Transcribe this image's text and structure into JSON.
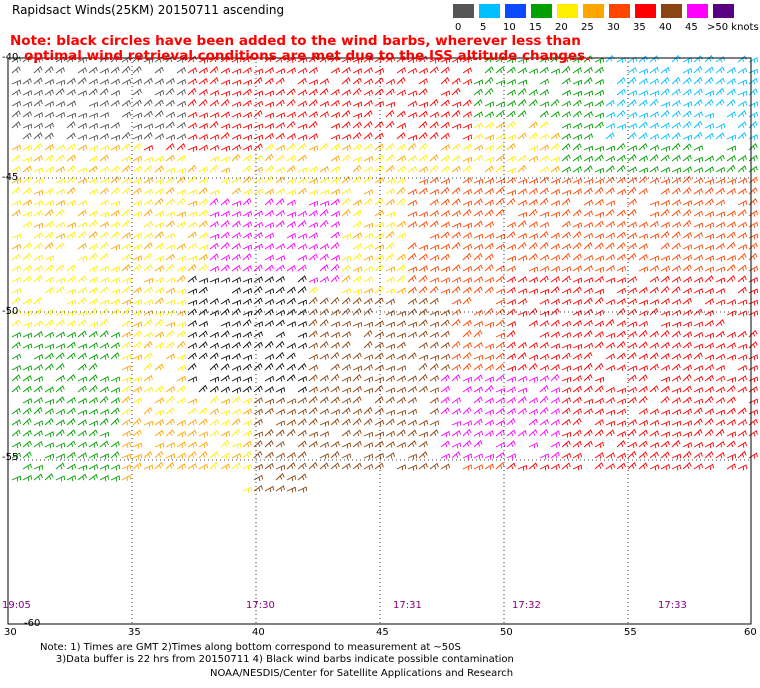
{
  "title": "Rapidsact Winds(25KM) 20150711 ascending",
  "note": "Note: black circles have been added to the wind barbs, wherever less than\n   optimal wind retrieval conditions are met due to the ISS altitude changes.",
  "scale": {
    "labels": [
      "0",
      "5",
      "10",
      "15",
      "20",
      "25",
      "30",
      "35",
      "40",
      "45",
      ">50 knots"
    ],
    "colors": [
      "#555555",
      "#00bfff",
      "#0a4aff",
      "#00a000",
      "#ffee00",
      "#ffa500",
      "#ff4500",
      "#ff0000",
      "#8b4513",
      "#ff00ff",
      "#5a0082"
    ]
  },
  "map": {
    "lat_labels": [
      "-40",
      "-45",
      "-50",
      "-55",
      "-60"
    ],
    "lon_labels": [
      "30",
      "35",
      "40",
      "45",
      "50",
      "55",
      "60"
    ],
    "times": [
      "19:05",
      "17:30",
      "17:31",
      "17:32",
      "17:33"
    ]
  },
  "footer": {
    "line1": "Note: 1) Times are GMT 2)Times along bottom correspond to measurement at ~50S",
    "line2": "     3)Data buffer is 22 hrs from 20150711 4) Black wind barbs indicate possible contamination",
    "line3": "NOAA/NESDIS/Center for Satellite Applications and Research"
  }
}
